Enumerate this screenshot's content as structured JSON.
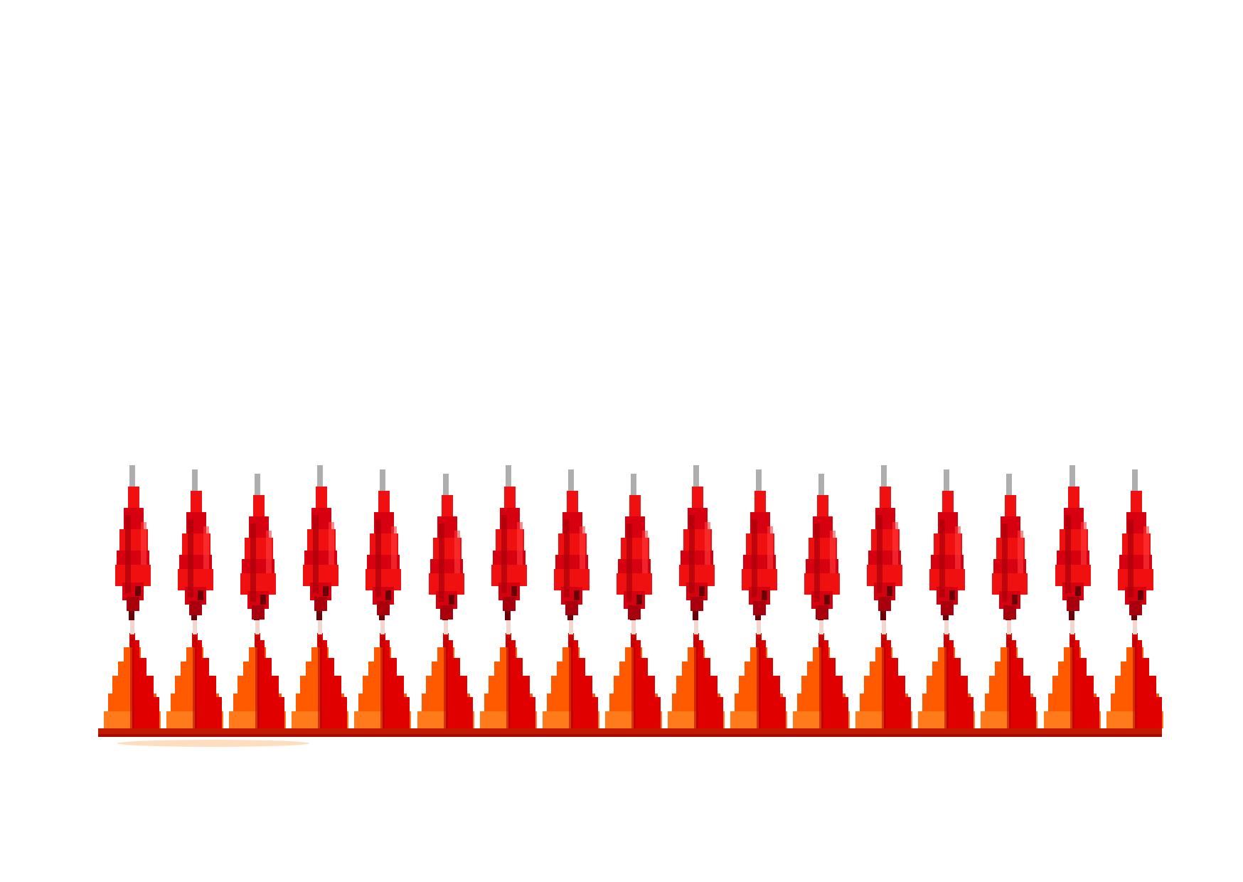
{
  "scene": {
    "motif_count": 17,
    "motif_name": "flame-spike",
    "colors": {
      "background": "#ffffff",
      "upper_flame_light": "#f01010",
      "upper_flame_mid": "#d60010",
      "upper_flame_dark": "#a8000c",
      "upper_flame_deep": "#6a0008",
      "lower_flame_orange": "#ff5a00",
      "lower_flame_light_orange": "#ff7a1a",
      "lower_flame_red": "#e00000",
      "lower_flame_dark": "#b00000",
      "base_strip": "#c21a00",
      "base_strip_dark": "#8f0000",
      "tip_grey": "#9a9a9a",
      "glow": "#ffd6b0"
    }
  }
}
